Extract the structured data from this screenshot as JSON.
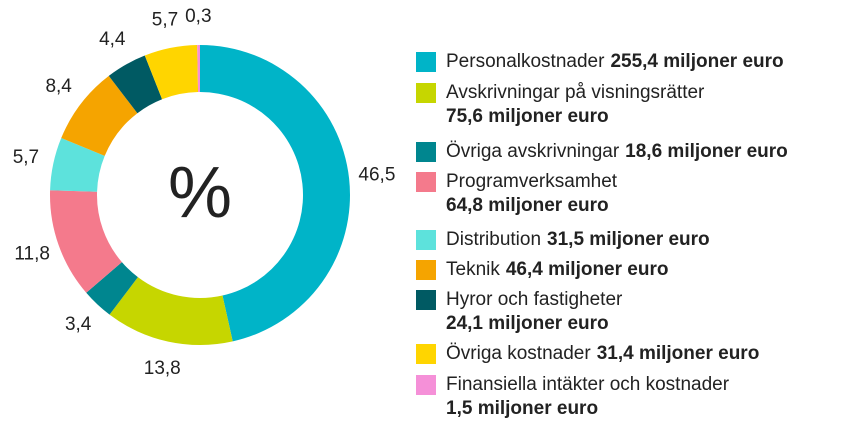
{
  "chart_data": {
    "type": "donut",
    "center_label": "%",
    "categories": [
      "Personalkostnader",
      "Avskrivningar på visningsrätter",
      "Övriga avskrivningar",
      "Programverksamhet",
      "Distribution",
      "Teknik",
      "Hyror och fastigheter",
      "Övriga kostnader",
      "Finansiella intäkter och kostnader"
    ],
    "amounts": [
      "255,4 miljoner euro",
      "75,6 miljoner euro",
      "18,6 miljoner euro",
      "64,8 miljoner euro",
      "31,5 miljoner euro",
      "46,4 miljoner euro",
      "24,1 miljoner euro",
      "31,4 miljoner euro",
      "1,5 miljoner euro"
    ],
    "values": [
      46.5,
      13.8,
      3.4,
      11.8,
      5.7,
      8.4,
      4.4,
      5.7,
      0.3
    ],
    "value_labels": [
      "46,5",
      "13,8",
      "3,4",
      "11,8",
      "5,7",
      "8,4",
      "4,4",
      "5,7",
      "0,3"
    ],
    "colors": [
      "#00b4c8",
      "#c6d600",
      "#00868f",
      "#f47a8c",
      "#5de2dc",
      "#f5a400",
      "#005a63",
      "#ffd500",
      "#f590d8"
    ]
  }
}
